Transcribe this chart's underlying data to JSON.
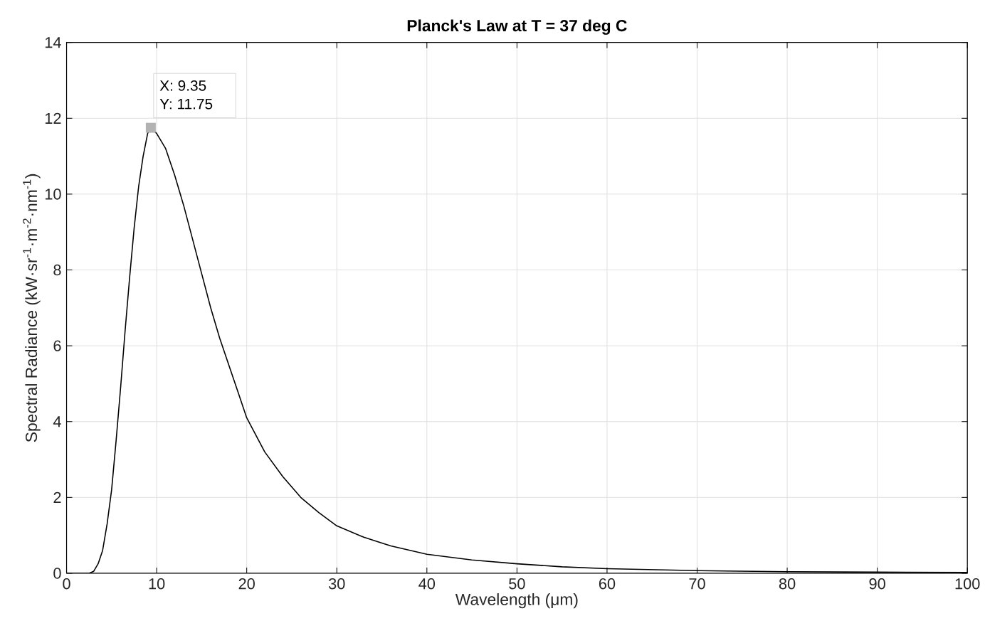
{
  "chart_data": {
    "type": "line",
    "title": "Planck's Law at T = 37 deg C",
    "xlabel": "Wavelength (μm)",
    "ylabel": "Spectral Radiance (kW·sr$^{-1}$·m$^{-2}$·nm$^{-1}$)",
    "x": [
      0,
      1,
      2,
      2.5,
      3,
      3.5,
      4,
      4.5,
      5,
      5.5,
      6,
      6.5,
      7,
      7.5,
      8,
      8.5,
      9,
      9.35,
      10,
      11,
      12,
      13,
      14,
      15,
      16,
      17,
      18,
      19,
      20,
      22,
      24,
      26,
      28,
      30,
      33,
      36,
      40,
      45,
      50,
      55,
      60,
      70,
      80,
      90,
      100
    ],
    "series": [
      {
        "color": "#000000",
        "values": [
          0,
          0,
          0,
          0,
          0.05,
          0.25,
          0.6,
          1.3,
          2.2,
          3.5,
          4.9,
          6.4,
          7.8,
          9.1,
          10.2,
          11.0,
          11.6,
          11.75,
          11.6,
          11.2,
          10.5,
          9.7,
          8.8,
          7.9,
          7.0,
          6.2,
          5.5,
          4.8,
          4.1,
          3.2,
          2.55,
          2.0,
          1.6,
          1.25,
          0.95,
          0.72,
          0.5,
          0.35,
          0.25,
          0.17,
          0.12,
          0.07,
          0.04,
          0.03,
          0.02
        ]
      }
    ],
    "xlim": [
      0,
      100
    ],
    "ylim": [
      0,
      14
    ],
    "xticks": [
      0,
      10,
      20,
      30,
      40,
      50,
      60,
      70,
      80,
      90,
      100
    ],
    "yticks": [
      0,
      2,
      4,
      6,
      8,
      10,
      12,
      14
    ],
    "grid": true,
    "marker": "none",
    "line_style": "solid",
    "annotations": [
      {
        "text": "X: 9.35",
        "x": 9.35,
        "y": 11.75
      },
      {
        "text": "Y: 11.75",
        "x": 9.35,
        "y": 11.75
      }
    ]
  }
}
